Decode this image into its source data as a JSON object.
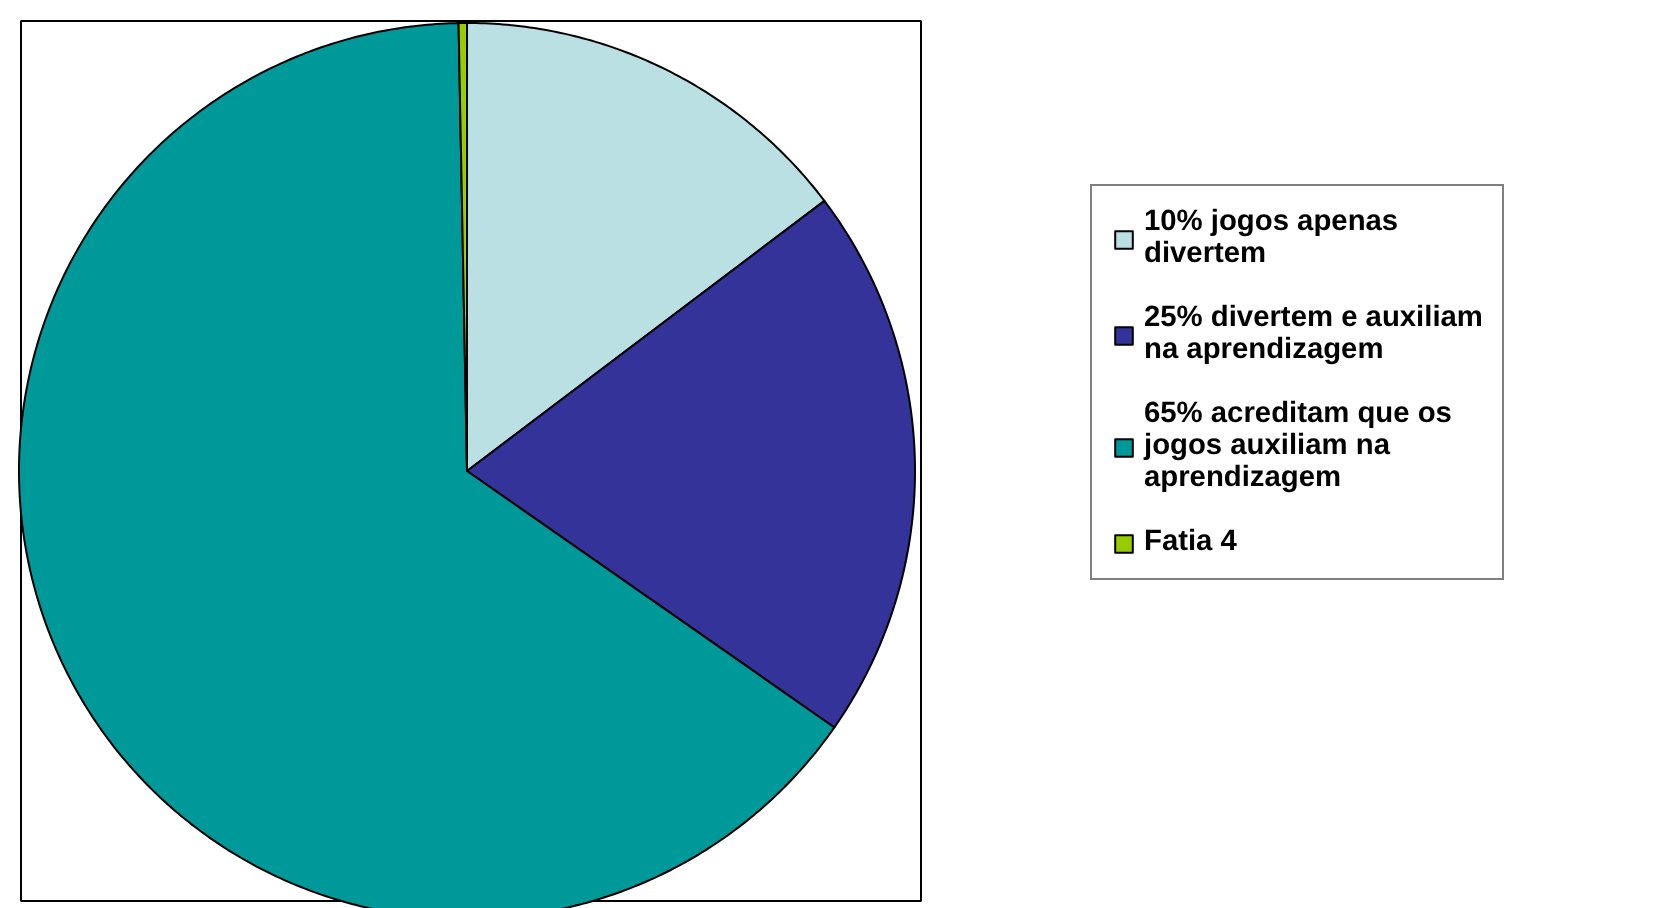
{
  "chart_data": {
    "type": "pie",
    "categories": [
      "10% jogos apenas divertem",
      "25% divertem e auxiliam na aprendizagem",
      "65% acreditam que os jogos auxiliam na aprendizagem",
      "Fatia 4"
    ],
    "values": [
      14.7,
      20.0,
      65.0,
      0.3
    ],
    "colors": [
      "#bbe0e3",
      "#333399",
      "#009999",
      "#99cc00"
    ],
    "legend": "right"
  }
}
